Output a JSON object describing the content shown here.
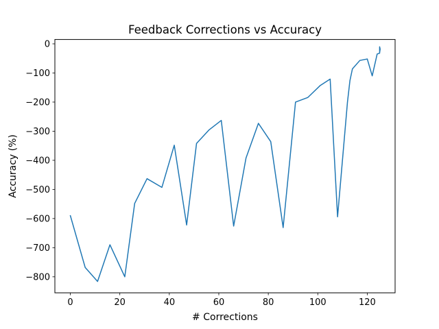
{
  "chart_data": {
    "type": "line",
    "title": "Feedback Corrections vs Accuracy",
    "xlabel": "# Corrections",
    "ylabel": "Accuracy (%)",
    "xlim": [
      -6.25,
      131.25
    ],
    "ylim": [
      -855,
      15
    ],
    "xticks": [
      0,
      20,
      40,
      60,
      80,
      100,
      120
    ],
    "yticks": [
      0,
      -100,
      -200,
      -300,
      -400,
      -500,
      -600,
      -700,
      -800
    ],
    "xtick_labels": [
      "0",
      "20",
      "40",
      "60",
      "80",
      "100",
      "120"
    ],
    "ytick_labels": [
      "0",
      "−100",
      "−200",
      "−300",
      "−400",
      "−500",
      "−600",
      "−700",
      "−800"
    ],
    "grid": false,
    "legend": "none",
    "series": [
      {
        "color": "#1f77b4",
        "points": [
          [
            0,
            -590
          ],
          [
            6,
            -768
          ],
          [
            11,
            -816
          ],
          [
            16,
            -690
          ],
          [
            22,
            -800
          ],
          [
            26,
            -548
          ],
          [
            31,
            -463
          ],
          [
            37,
            -493
          ],
          [
            42,
            -348
          ],
          [
            47,
            -622
          ],
          [
            51,
            -342
          ],
          [
            56,
            -296
          ],
          [
            61,
            -263
          ],
          [
            66,
            -626
          ],
          [
            71,
            -392
          ],
          [
            76,
            -273
          ],
          [
            81,
            -336
          ],
          [
            86,
            -631
          ],
          [
            91,
            -200
          ],
          [
            96,
            -184
          ],
          [
            101,
            -143
          ],
          [
            105,
            -121
          ],
          [
            108,
            -594
          ],
          [
            112,
            -200
          ],
          [
            113,
            -126
          ],
          [
            114,
            -86
          ],
          [
            117,
            -57
          ],
          [
            120,
            -52
          ],
          [
            122,
            -110
          ],
          [
            124,
            -35
          ],
          [
            125,
            -32
          ],
          [
            125,
            -10
          ],
          [
            125.2,
            -18
          ],
          [
            125,
            -30
          ]
        ]
      }
    ]
  }
}
